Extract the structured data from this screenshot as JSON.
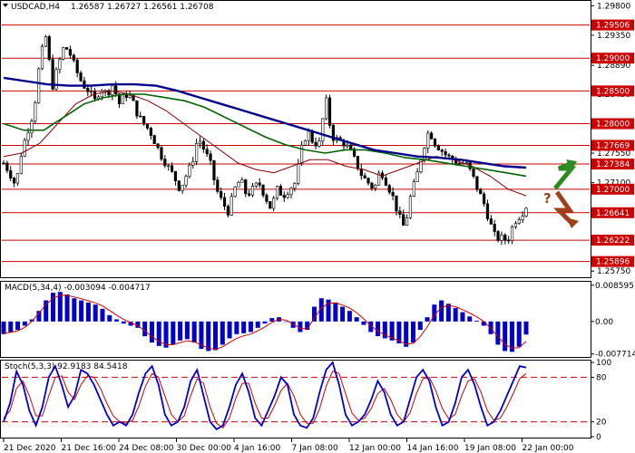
{
  "chart_data": {
    "symbol": "USDCAD,H4",
    "ohlc_text": "1.26587 1.26727 1.26561 1.26708",
    "price_panel": {
      "type": "candlestick",
      "ylim": [
        1.2567,
        1.2986
      ],
      "tick_labels": [
        "1.29800",
        "1.29350",
        "1.28890",
        "1.28450",
        "1.28000",
        "1.27550",
        "1.27100",
        "1.26650",
        "1.26200",
        "1.25750"
      ],
      "tick_values": [
        1.298,
        1.2935,
        1.2889,
        1.2845,
        1.28,
        1.2755,
        1.271,
        1.2665,
        1.262,
        1.2575
      ],
      "levels": [
        {
          "label": "1.29506",
          "value": 1.29506
        },
        {
          "label": "1.29000",
          "value": 1.29
        },
        {
          "label": "1.28500",
          "value": 1.285
        },
        {
          "label": "1.28000",
          "value": 1.28
        },
        {
          "label": "1.27669",
          "value": 1.27669
        },
        {
          "label": "1.27384",
          "value": 1.27384
        },
        {
          "label": "1.27000",
          "value": 1.27
        },
        {
          "label": "1.26641",
          "value": 1.26641
        },
        {
          "label": "1.26222",
          "value": 1.26222
        },
        {
          "label": "1.25896",
          "value": 1.25896
        }
      ],
      "level_color": "#cc0000",
      "current_price": 1.26708,
      "close_path": [
        1.274,
        1.2725,
        1.2705,
        1.276,
        1.279,
        1.282,
        1.29,
        1.2935,
        1.2855,
        1.289,
        1.292,
        1.2905,
        1.288,
        1.286,
        1.285,
        1.2835,
        1.2855,
        1.2845,
        1.286,
        1.283,
        1.2845,
        1.284,
        1.2815,
        1.28,
        1.279,
        1.277,
        1.275,
        1.2735,
        1.272,
        1.27,
        1.272,
        1.274,
        1.278,
        1.276,
        1.274,
        1.27,
        1.268,
        1.2665,
        1.27,
        1.2715,
        1.269,
        1.27,
        1.271,
        1.269,
        1.267,
        1.27,
        1.269,
        1.27,
        1.271,
        1.276,
        1.279,
        1.277,
        1.277,
        1.284,
        1.278,
        1.2775,
        1.277,
        1.276,
        1.274,
        1.272,
        1.271,
        1.27,
        1.273,
        1.271,
        1.269,
        1.266,
        1.264,
        1.269,
        1.272,
        1.276,
        1.279,
        1.277,
        1.276,
        1.275,
        1.2745,
        1.274,
        1.274,
        1.2725,
        1.27,
        1.268,
        1.265,
        1.2625,
        1.2625,
        1.2622,
        1.265,
        1.266,
        1.2671
      ],
      "ma_fast_color": "#8b0000",
      "ma_mid_color": "#006400",
      "ma_slow_color": "#00008b",
      "ma_slow": [
        1.287,
        1.2865,
        1.286,
        1.2858,
        1.2858,
        1.286,
        1.286,
        1.2858,
        1.285,
        1.284,
        1.283,
        1.282,
        1.281,
        1.28,
        1.279,
        1.278,
        1.277,
        1.276,
        1.2755,
        1.275,
        1.2748,
        1.2745,
        1.274,
        1.2735,
        1.2733
      ],
      "ma_mid": [
        1.28,
        1.279,
        1.279,
        1.281,
        1.283,
        1.284,
        1.2845,
        1.2845,
        1.284,
        1.2835,
        1.2825,
        1.281,
        1.2795,
        1.278,
        1.2768,
        1.276,
        1.2755,
        1.276,
        1.276,
        1.2755,
        1.2748,
        1.2745,
        1.274,
        1.2735,
        1.273,
        1.2725,
        1.272
      ],
      "ma_fast": [
        1.275,
        1.2755,
        1.277,
        1.28,
        1.283,
        1.2845,
        1.285,
        1.2845,
        1.2835,
        1.282,
        1.28,
        1.278,
        1.276,
        1.274,
        1.273,
        1.2725,
        1.2735,
        1.2745,
        1.2745,
        1.2735,
        1.273,
        1.272,
        1.273,
        1.274,
        1.275,
        1.2745,
        1.2735,
        1.272,
        1.27,
        1.269
      ],
      "forecast_up_color": "#2e8b1e",
      "forecast_down_color": "#a0401a",
      "question_mark": "?"
    },
    "macd_panel": {
      "type": "bar",
      "title": "MACD(5,34,4) -0.003094 -0.004717",
      "ylim": [
        -0.0082,
        0.0092
      ],
      "tick_labels": [
        "0.008595",
        "0.00",
        "-0.007714"
      ],
      "tick_values": [
        0.008595,
        0.0,
        -0.007714
      ],
      "histogram_color": "#0000cc",
      "signal_color": "#cc0000",
      "values": [
        -0.003,
        -0.0025,
        -0.002,
        -0.001,
        0.0005,
        0.0025,
        0.005,
        0.0068,
        0.007,
        0.0064,
        0.0055,
        0.005,
        0.0045,
        0.004,
        0.003,
        0.0015,
        0.0005,
        -0.0005,
        -0.001,
        -0.0015,
        -0.0035,
        -0.005,
        -0.0058,
        -0.0062,
        -0.0055,
        -0.0045,
        -0.0042,
        -0.005,
        -0.0065,
        -0.007,
        -0.0068,
        -0.0055,
        -0.004,
        -0.003,
        -0.0028,
        -0.0025,
        -0.0015,
        -0.0005,
        0.0008,
        0.001,
        0.0,
        -0.0015,
        -0.0025,
        -0.002,
        0.0035,
        0.0055,
        0.0052,
        0.0045,
        0.0035,
        0.0025,
        0.001,
        -0.0008,
        -0.0025,
        -0.0035,
        -0.004,
        -0.0045,
        -0.0052,
        -0.006,
        -0.005,
        -0.002,
        0.001,
        0.004,
        0.005,
        0.0042,
        0.0032,
        0.0022,
        0.0012,
        0.0002,
        -0.001,
        -0.003,
        -0.0055,
        -0.007,
        -0.0072,
        -0.006,
        -0.0031
      ],
      "signal": [
        -0.0028,
        -0.0026,
        -0.0022,
        -0.0014,
        0.0,
        0.002,
        0.004,
        0.0055,
        0.0062,
        0.0062,
        0.0058,
        0.0054,
        0.0049,
        0.0044,
        0.0037,
        0.0026,
        0.0015,
        0.0005,
        -0.0003,
        -0.001,
        -0.0022,
        -0.0036,
        -0.0047,
        -0.0055,
        -0.0055,
        -0.005,
        -0.0046,
        -0.0048,
        -0.0056,
        -0.0063,
        -0.0066,
        -0.006,
        -0.005,
        -0.004,
        -0.0034,
        -0.003,
        -0.0022,
        -0.0013,
        -0.0002,
        0.0005,
        0.0003,
        -0.0006,
        -0.0016,
        -0.0018,
        0.0008,
        0.0032,
        0.0043,
        0.0044,
        0.0039,
        0.0032,
        0.0021,
        0.0006,
        -0.001,
        -0.0023,
        -0.0032,
        -0.0039,
        -0.0046,
        -0.0054,
        -0.0052,
        -0.0036,
        -0.0013,
        0.0015,
        0.0033,
        0.0038,
        0.0035,
        0.0028,
        0.002,
        0.0011,
        0.0,
        -0.0016,
        -0.0036,
        -0.0054,
        -0.0063,
        -0.0062,
        -0.0047
      ]
    },
    "stoch_panel": {
      "type": "line",
      "title": "Stoch(5,3,3) 92.9183 84.5418",
      "ylim": [
        0,
        100
      ],
      "tick_labels": [
        "100",
        "80",
        "20",
        "0"
      ],
      "tick_values": [
        100,
        80,
        20,
        0
      ],
      "levels": [
        80,
        20
      ],
      "main_color": "#0000cc",
      "signal_color": "#cc0000",
      "main": [
        20,
        45,
        88,
        70,
        35,
        15,
        40,
        80,
        95,
        70,
        40,
        55,
        90,
        85,
        70,
        50,
        30,
        15,
        20,
        15,
        30,
        60,
        85,
        95,
        70,
        30,
        15,
        20,
        40,
        75,
        90,
        55,
        20,
        10,
        15,
        40,
        70,
        85,
        60,
        25,
        15,
        35,
        55,
        80,
        70,
        30,
        15,
        12,
        25,
        60,
        90,
        100,
        70,
        30,
        15,
        20,
        30,
        50,
        75,
        60,
        30,
        15,
        20,
        50,
        80,
        90,
        75,
        40,
        15,
        20,
        45,
        80,
        90,
        70,
        40,
        15,
        20,
        35,
        55,
        75,
        95,
        93
      ],
      "signal": [
        25,
        35,
        65,
        75,
        55,
        28,
        28,
        55,
        80,
        82,
        60,
        50,
        70,
        82,
        80,
        65,
        45,
        28,
        20,
        18,
        22,
        42,
        68,
        85,
        80,
        55,
        30,
        20,
        28,
        55,
        78,
        72,
        40,
        18,
        12,
        25,
        52,
        72,
        72,
        45,
        25,
        25,
        42,
        62,
        72,
        55,
        30,
        18,
        18,
        38,
        68,
        88,
        85,
        58,
        32,
        22,
        25,
        38,
        58,
        65,
        50,
        30,
        20,
        32,
        58,
        78,
        80,
        62,
        38,
        24,
        30,
        55,
        75,
        78,
        60,
        35,
        22,
        25,
        40,
        58,
        78,
        85
      ]
    },
    "x_tick_labels": [
      "21 Dec 2020",
      "21 Dec 16:00",
      "24 Dec 08:00",
      "30 Dec 00:00",
      "4 Jan 16:00",
      "7 Jan 08:00",
      "12 Jan 00:00",
      "14 Jan 16:00",
      "19 Jan 08:00",
      "22 Jan 00:00"
    ]
  }
}
